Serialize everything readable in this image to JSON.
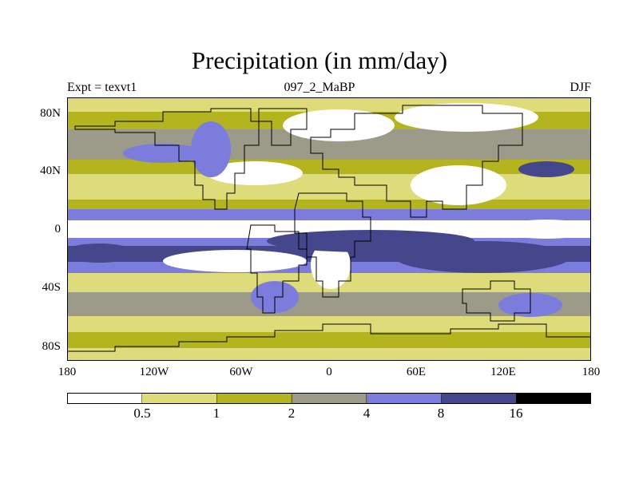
{
  "title": "Precipitation (in mm/day)",
  "subtitle": {
    "left": "Expt = texvt1",
    "center": "097_2_MaBP",
    "right": "DJF"
  },
  "axes": {
    "y_labels": [
      "80N",
      "40N",
      "0",
      "40S",
      "80S"
    ],
    "x_labels": [
      "180",
      "120W",
      "60W",
      "0",
      "60E",
      "120E",
      "180"
    ]
  },
  "colorbar": {
    "thresholds": [
      "0.5",
      "1",
      "2",
      "4",
      "8",
      "16"
    ],
    "colors": [
      "#ffffff",
      "#dedc7a",
      "#b4b41e",
      "#9c9a88",
      "#7c7cdc",
      "#46468c",
      "#000000"
    ]
  }
}
